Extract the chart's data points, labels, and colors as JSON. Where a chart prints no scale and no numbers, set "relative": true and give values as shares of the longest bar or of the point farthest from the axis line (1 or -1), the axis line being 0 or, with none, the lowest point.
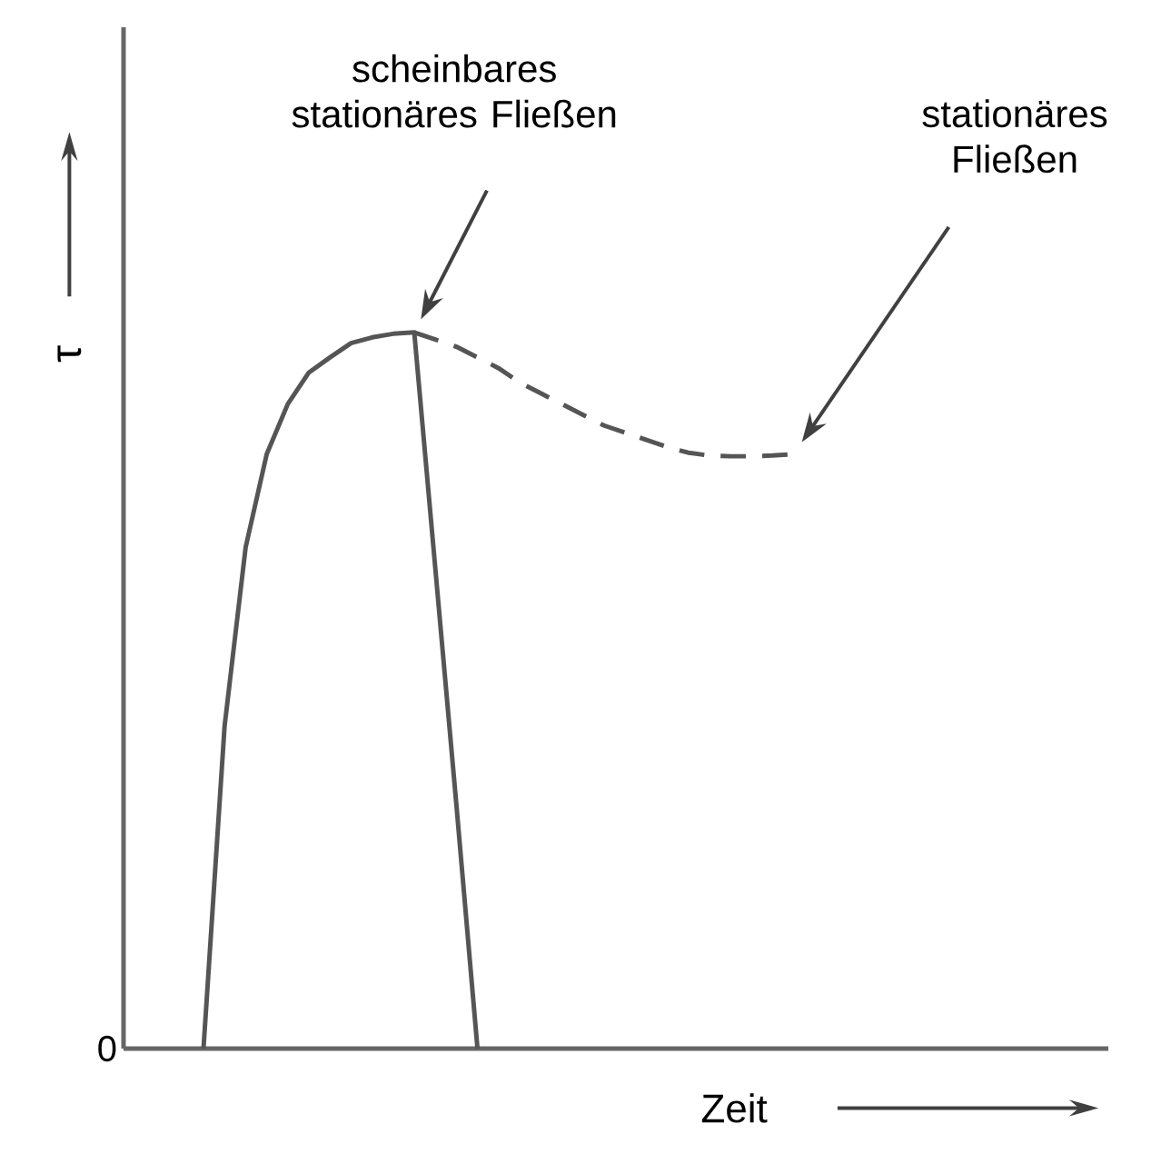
{
  "chart_data": {
    "type": "line",
    "relative": true,
    "xlabel": "Zeit",
    "ylabel": "τ",
    "marker": "none",
    "categories": [
      null,
      null,
      null,
      null,
      null,
      null,
      null,
      null,
      null,
      null,
      null,
      null,
      null,
      null,
      null,
      null,
      null,
      null,
      null,
      null,
      null,
      null,
      null,
      null,
      null,
      null,
      null,
      null,
      null
    ],
    "series": [
      {
        "color": "#555555",
        "line_style": "solid",
        "values": [
          0,
          0.45,
          0.7,
          0.83,
          0.9,
          0.944,
          0.965,
          0.985,
          0.993,
          0.998,
          1.0,
          0.67,
          0.34,
          0,
          null,
          null,
          null,
          null,
          null,
          null,
          null,
          null,
          null,
          null,
          null,
          null,
          null,
          null,
          null
        ]
      },
      {
        "color": "#555555",
        "line_style": "dashed",
        "values": [
          null,
          null,
          null,
          null,
          null,
          null,
          null,
          null,
          null,
          null,
          1.0,
          0.99,
          0.98,
          0.965,
          0.95,
          0.93,
          0.915,
          0.9,
          0.885,
          0.87,
          0.86,
          0.85,
          0.84,
          0.832,
          0.828,
          0.827,
          0.827,
          0.828,
          0.83
        ]
      }
    ],
    "annotations": [
      "scheinbares stationäres Fließen",
      "stationäres Fließen",
      "0"
    ]
  }
}
